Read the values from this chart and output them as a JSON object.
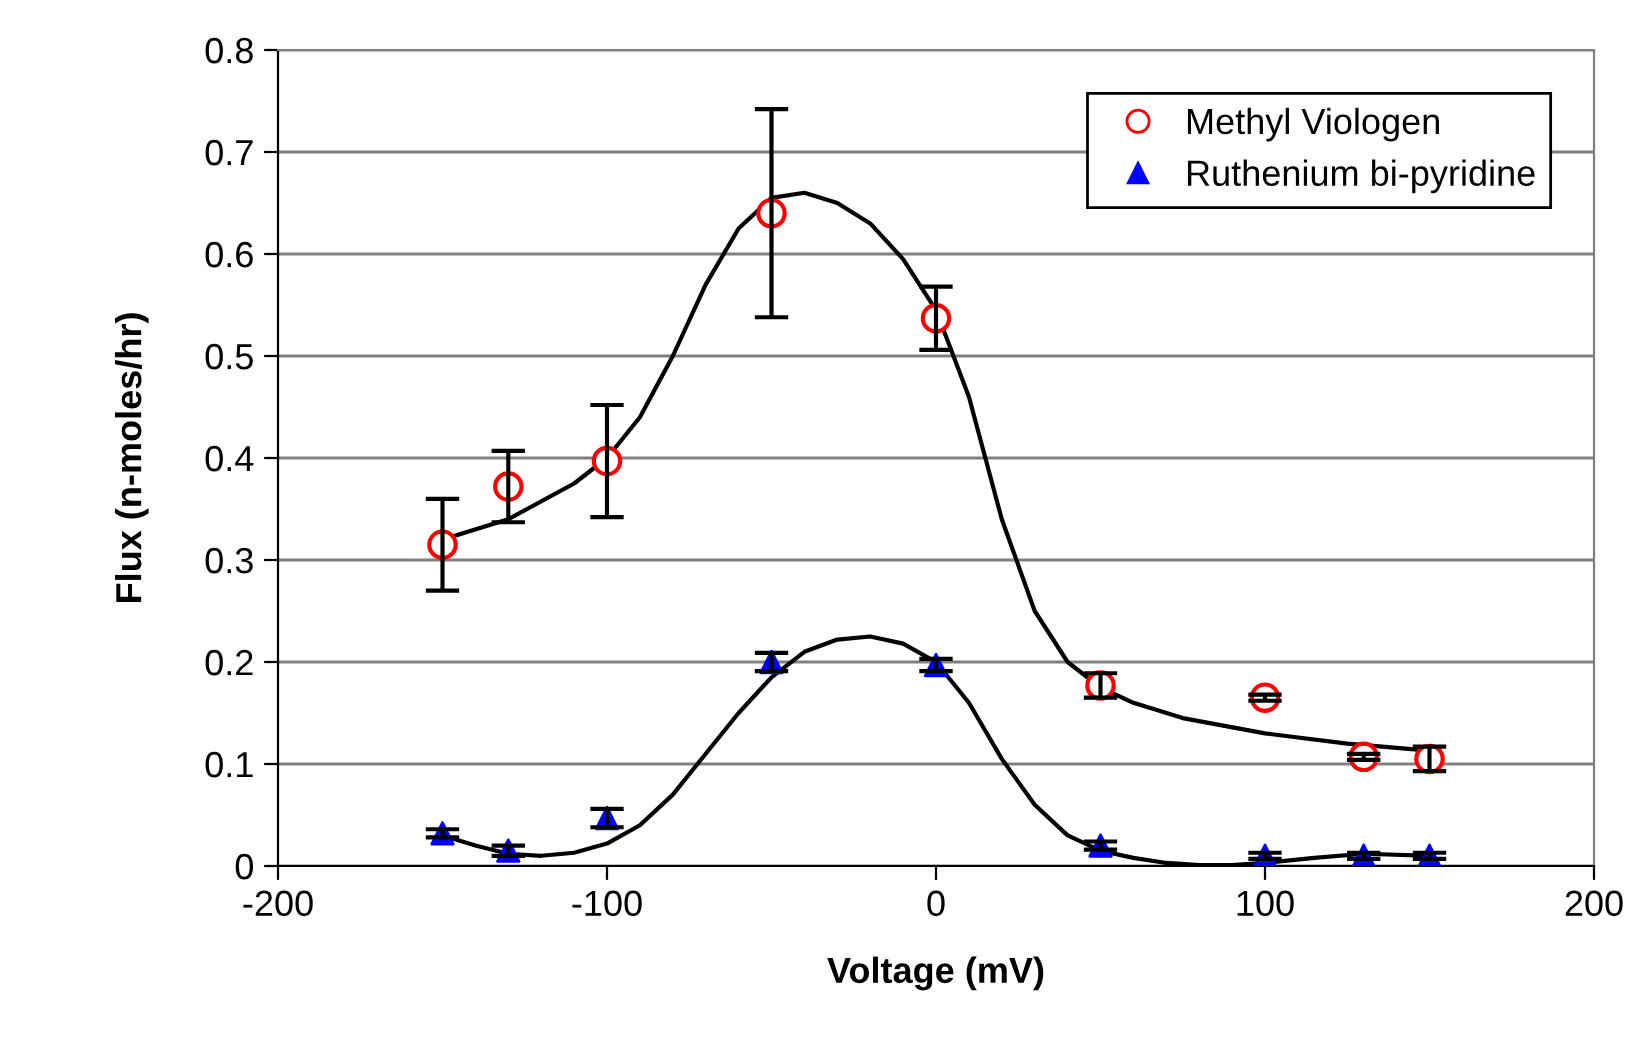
{
  "chart_data": {
    "type": "scatter",
    "xlabel": "Voltage (mV)",
    "ylabel": "Flux (n-moles/hr)",
    "xlim": [
      -200,
      200
    ],
    "xticks": [
      -200,
      -100,
      0,
      100,
      200
    ],
    "ylim": [
      0,
      0.8
    ],
    "yticks": [
      0,
      0.1,
      0.2,
      0.3,
      0.4,
      0.5,
      0.6,
      0.7,
      0.8
    ],
    "grid": "y",
    "legend": "top right",
    "series": [
      {
        "name": "Methyl Viologen",
        "marker": "circle",
        "color": "#ff0000",
        "x": [
          -150,
          -130,
          -100,
          -50,
          0,
          50,
          100,
          130,
          150
        ],
        "values": [
          0.315,
          0.372,
          0.397,
          0.64,
          0.537,
          0.177,
          0.165,
          0.107,
          0.105
        ],
        "errors": [
          0.045,
          0.035,
          0.055,
          0.102,
          0.031,
          0.012,
          0.003,
          0.003,
          0.012
        ]
      },
      {
        "name": "Ruthenium bi-pyridine",
        "marker": "triangle",
        "color": "#0000ff",
        "x": [
          -150,
          -130,
          -100,
          -50,
          0,
          50,
          100,
          130,
          150
        ],
        "values": [
          0.032,
          0.015,
          0.047,
          0.2,
          0.197,
          0.02,
          0.01,
          0.01,
          0.01
        ],
        "errors": [
          0.004,
          0.005,
          0.009,
          0.009,
          0.006,
          0.004,
          0.003,
          0.003,
          0.003
        ]
      },
      {
        "type": "line",
        "marker": "none",
        "color": "#000000",
        "x": [
          -150,
          -130,
          -110,
          -100,
          -90,
          -80,
          -70,
          -60,
          -50,
          -40,
          -30,
          -20,
          -10,
          0,
          10,
          20,
          30,
          40,
          50,
          60,
          75,
          100,
          125,
          150
        ],
        "values": [
          0.32,
          0.34,
          0.375,
          0.4,
          0.44,
          0.5,
          0.57,
          0.625,
          0.655,
          0.66,
          0.65,
          0.63,
          0.595,
          0.545,
          0.46,
          0.34,
          0.25,
          0.2,
          0.175,
          0.16,
          0.145,
          0.13,
          0.12,
          0.113
        ]
      },
      {
        "type": "line",
        "marker": "none",
        "color": "#000000",
        "x": [
          -150,
          -140,
          -130,
          -120,
          -110,
          -100,
          -90,
          -80,
          -70,
          -60,
          -50,
          -40,
          -30,
          -20,
          -10,
          0,
          10,
          20,
          30,
          40,
          50,
          60,
          70,
          80,
          90,
          100,
          115,
          130,
          150
        ],
        "values": [
          0.03,
          0.02,
          0.012,
          0.01,
          0.013,
          0.022,
          0.04,
          0.07,
          0.11,
          0.15,
          0.185,
          0.21,
          0.222,
          0.225,
          0.218,
          0.2,
          0.16,
          0.105,
          0.06,
          0.03,
          0.015,
          0.008,
          0.003,
          0.001,
          0.001,
          0.003,
          0.008,
          0.012,
          0.01
        ]
      }
    ]
  }
}
